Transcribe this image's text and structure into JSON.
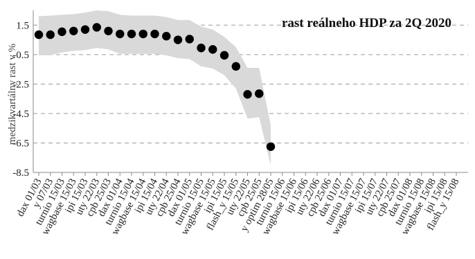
{
  "chart_data": {
    "type": "scatter",
    "title": "rast reálneho HDP za 2Q 2020",
    "ylabel": "medzikvartálny rast v %",
    "xlabel": "",
    "ylim": [
      -8.5,
      2.5
    ],
    "yticks": [
      1.5,
      -0.5,
      -2.5,
      -4.5,
      -6.5,
      -8.5
    ],
    "ytick_labels": [
      "1.5",
      "-0.5",
      "-2.5",
      "-4.5",
      "-6.5",
      "-8.5"
    ],
    "grid": true,
    "categories": [
      "dax 01/03",
      "y 07/03",
      "turnio 15/03",
      "wagbase 15/03",
      "ipi 15/03",
      "uty 22/03",
      "cpb 25/03",
      "dax 01/04",
      "turnio 15/04",
      "wagbase 15/04",
      "ipi 15/04",
      "uty 22/04",
      "cpb 25/04",
      "dax 01/05",
      "turnio 15/05",
      "wagbase 15/05",
      "ipi 15/05",
      "flash_y 15/05",
      "uty 22/05",
      "cpb 25/05",
      "y optim 28/05",
      "turnio 15/06",
      "wagbase 15/06",
      "ipi 15/06",
      "uty 22/06",
      "cpb 25/06",
      "dax 01/07",
      "turnio 15/07",
      "wagbase 15/07",
      "ipi 15/07",
      "uty 22/07",
      "cpb 25/07",
      "dax 01/08",
      "turnio 15/08",
      "wagbase 15/08",
      "ipi 15/08",
      "flash_y 15/08"
    ],
    "series": [
      {
        "values": [
          0.85,
          0.85,
          1.05,
          1.1,
          1.2,
          1.35,
          1.1,
          0.9,
          0.9,
          0.9,
          0.9,
          0.75,
          0.5,
          0.55,
          -0.05,
          -0.15,
          -0.55,
          -1.3,
          -3.2,
          -3.15,
          -6.75,
          null,
          null,
          null,
          null,
          null,
          null,
          null,
          null,
          null,
          null,
          null,
          null,
          null,
          null,
          null,
          null
        ]
      }
    ],
    "band": {
      "upper": [
        2.1,
        2.15,
        2.2,
        2.25,
        2.35,
        2.5,
        2.45,
        2.2,
        2.15,
        2.15,
        2.15,
        2.05,
        1.85,
        1.85,
        1.4,
        1.2,
        0.7,
        0.0,
        -1.4,
        -1.4,
        -5.3
      ],
      "lower": [
        -0.55,
        -0.55,
        -0.35,
        -0.25,
        -0.2,
        -0.05,
        -0.15,
        -0.45,
        -0.45,
        -0.45,
        -0.45,
        -0.55,
        -0.75,
        -0.8,
        -1.3,
        -1.45,
        -1.9,
        -2.8,
        -4.85,
        -4.75,
        -8.0
      ]
    },
    "colors": {
      "band": "#d9d9d9",
      "points": "#000000",
      "grid": "#9a9a9a"
    }
  }
}
